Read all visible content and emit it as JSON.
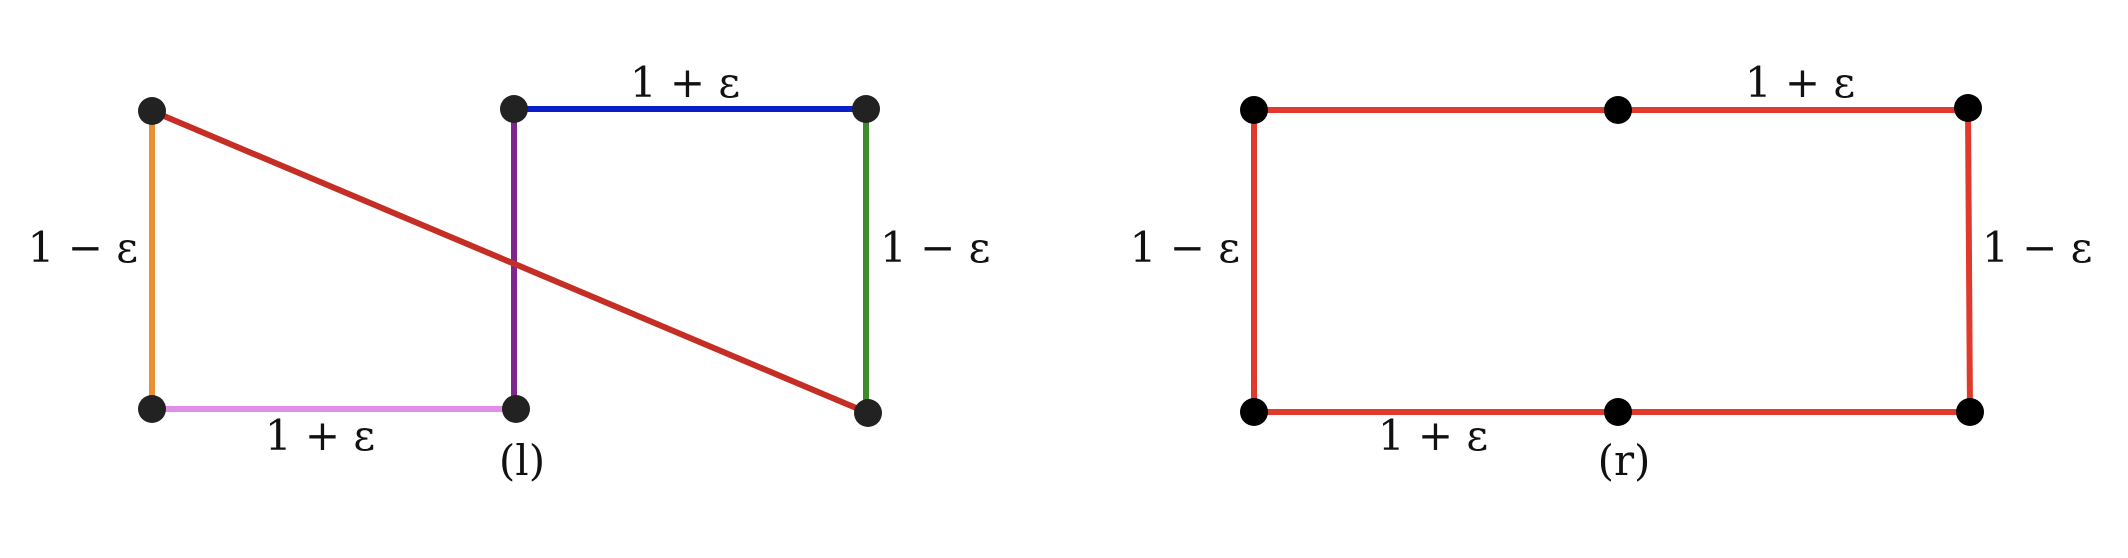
{
  "left": {
    "caption": "(l)",
    "labels": {
      "top": "1 + ε",
      "left": "1 − ε",
      "right": "1 − ε",
      "bottom": "1 + ε"
    },
    "colors": {
      "orange": "#ec8f32",
      "pink": "#e08ee6",
      "purple": "#7e2590",
      "blue": "#0a1fc8",
      "green": "#3f8a2b",
      "red": "#c42e24"
    }
  },
  "right": {
    "caption": "(r)",
    "labels": {
      "top": "1 + ε",
      "left": "1 − ε",
      "right": "1 − ε",
      "bottom": "1 + ε"
    },
    "colors": {
      "edge": "#e03a2c"
    }
  }
}
